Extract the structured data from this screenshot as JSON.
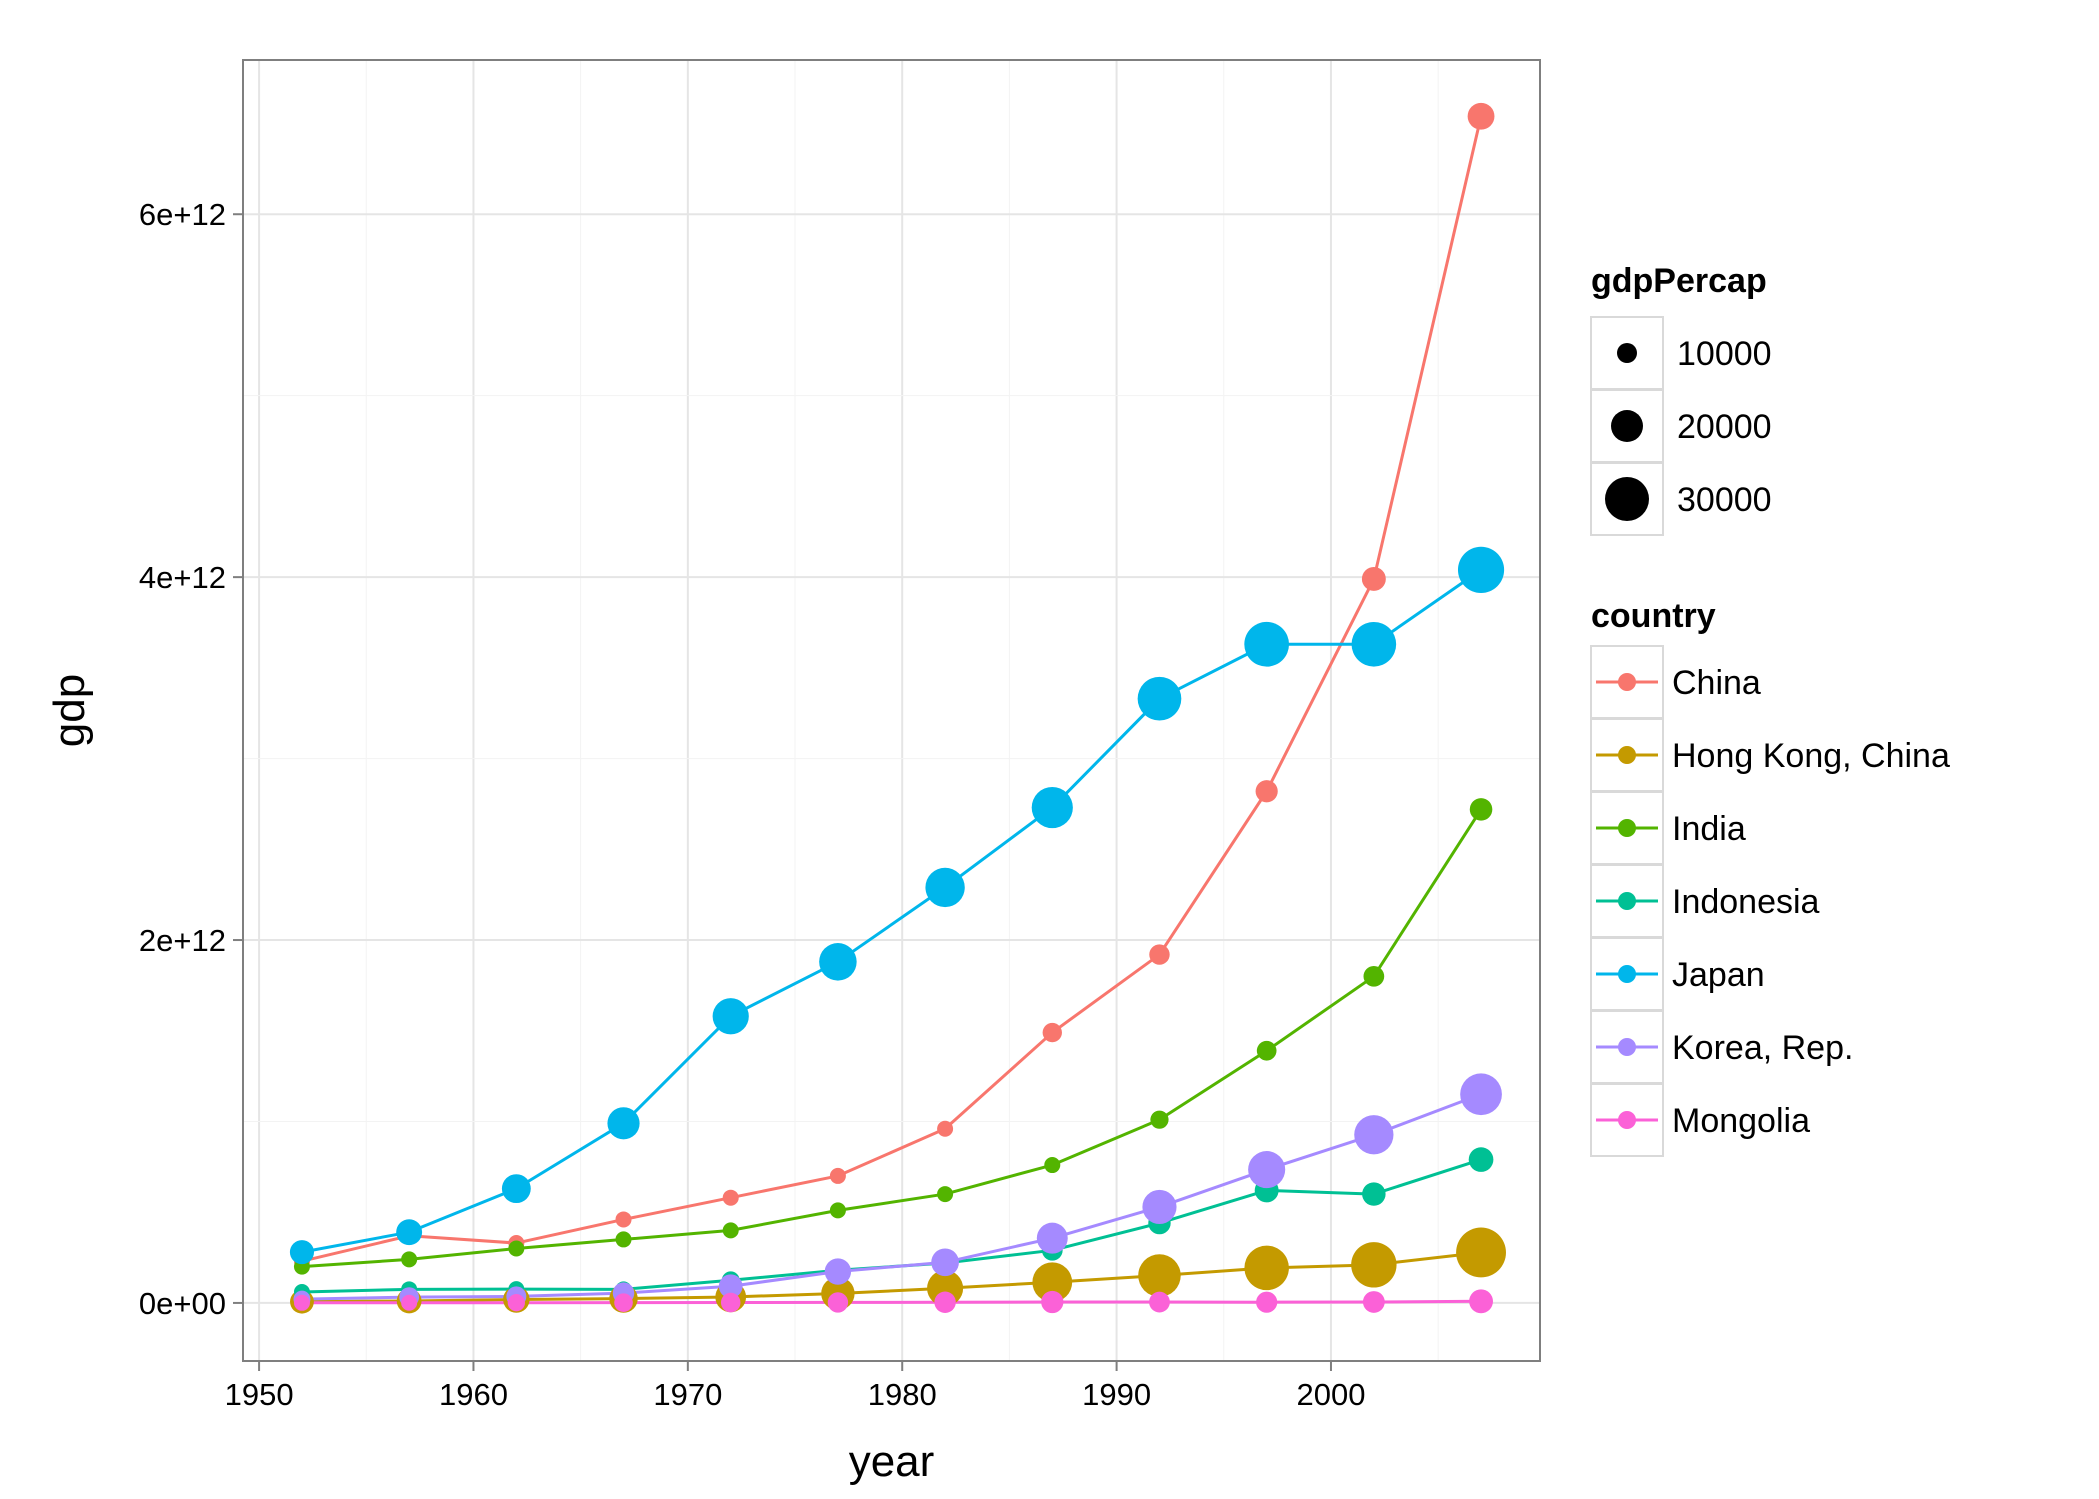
{
  "chart_data": {
    "type": "line",
    "xlabel": "year",
    "ylabel": "gdp",
    "xlim": [
      1949.25,
      2009.75
    ],
    "ylim": [
      -320000000000.0,
      6850000000000.0
    ],
    "xticks": [
      1950,
      1960,
      1970,
      1980,
      1990,
      2000
    ],
    "xtick_labels": [
      "1950",
      "1960",
      "1970",
      "1980",
      "1990",
      "2000"
    ],
    "yticks": [
      0,
      2000000000000.0,
      4000000000000.0,
      6000000000000.0
    ],
    "ytick_labels": [
      "0e+00",
      "2e+12",
      "4e+12",
      "6e+12"
    ],
    "grid": true,
    "legend_position": "right",
    "x": [
      1952,
      1957,
      1962,
      1967,
      1972,
      1977,
      1982,
      1987,
      1992,
      1997,
      2002,
      2007
    ],
    "size_legend": {
      "title": "gdpPercap",
      "values": [
        10000,
        20000,
        30000
      ],
      "labels": [
        "10000",
        "20000",
        "30000"
      ]
    },
    "color_legend_title": "country",
    "series": [
      {
        "name": "China",
        "color": "#F8766D",
        "values": [
          230000000000.0,
          370000000000.0,
          330000000000.0,
          460000000000.0,
          580000000000.0,
          700000000000.0,
          960000000000.0,
          1490000000000.0,
          1920000000000.0,
          2820000000000.0,
          3990000000000.0,
          6540000000000.0
        ],
        "gdpPercap": [
          400,
          576,
          488,
          613,
          677,
          741,
          962,
          1379,
          1656,
          2289,
          3119,
          4959
        ]
      },
      {
        "name": "Hong Kong, China",
        "color": "#C49A00",
        "values": [
          7000000000.0,
          11000000000.0,
          19000000000.0,
          24000000000.0,
          33000000000.0,
          52000000000.0,
          81000000000.0,
          114000000000.0,
          151000000000.0,
          193000000000.0,
          210000000000.0,
          278000000000.0
        ],
        "gdpPercap": [
          3054,
          3629,
          4693,
          6198,
          8316,
          11186,
          14561,
          20038,
          24758,
          28378,
          30209,
          39725
        ]
      },
      {
        "name": "India",
        "color": "#53B400",
        "values": [
          200000000000.0,
          240000000000.0,
          300000000000.0,
          350000000000.0,
          400000000000.0,
          510000000000.0,
          600000000000.0,
          760000000000.0,
          1010000000000.0,
          1390000000000.0,
          1800000000000.0,
          2720000000000.0
        ],
        "gdpPercap": [
          547,
          590,
          658,
          701,
          724,
          813,
          856,
          977,
          1164,
          1459,
          1747,
          2452
        ]
      },
      {
        "name": "Indonesia",
        "color": "#00C094",
        "values": [
          60000000000.0,
          75000000000.0,
          76000000000.0,
          75000000000.0,
          125000000000.0,
          180000000000.0,
          220000000000.0,
          290000000000.0,
          440000000000.0,
          620000000000.0,
          600000000000.0,
          790000000000.0
        ],
        "gdpPercap": [
          750,
          859,
          849,
          762,
          1111,
          1383,
          1517,
          1748,
          2383,
          3119,
          2874,
          3541
        ]
      },
      {
        "name": "Japan",
        "color": "#00B6EB",
        "values": [
          280000000000.0,
          390000000000.0,
          630000000000.0,
          990000000000.0,
          1580000000000.0,
          1880000000000.0,
          2290000000000.0,
          2730000000000.0,
          3330000000000.0,
          3630000000000.0,
          3630000000000.0,
          4040000000000.0
        ],
        "gdpPercap": [
          3217,
          4318,
          6577,
          9848,
          14779,
          16610,
          19384,
          22376,
          26825,
          28817,
          28605,
          31656
        ]
      },
      {
        "name": "Korea, Rep.",
        "color": "#A58AFF",
        "values": [
          21000000000.0,
          32000000000.0,
          36000000000.0,
          54000000000.0,
          92000000000.0,
          173000000000.0,
          224000000000.0,
          357000000000.0,
          529000000000.0,
          735000000000.0,
          927000000000.0,
          1150000000000.0
        ],
        "gdpPercap": [
          1031,
          1488,
          1536,
          2029,
          3031,
          4657,
          5623,
          8533,
          12104,
          15994,
          19234,
          23348
        ]
      },
      {
        "name": "Mongolia",
        "color": "#FB61D7",
        "values": [
          800000000.0,
          1000000000.0,
          1300000000.0,
          1600000000.0,
          2100000000.0,
          2800000000.0,
          3800000000.0,
          5000000000.0,
          4800000000.0,
          4100000000.0,
          5300000000.0,
          9000000000.0
        ],
        "gdpPercap": [
          786,
          912,
          1056,
          1226,
          1421,
          1648,
          2000,
          2338,
          1785,
          1902,
          2140,
          3096
        ]
      }
    ]
  }
}
